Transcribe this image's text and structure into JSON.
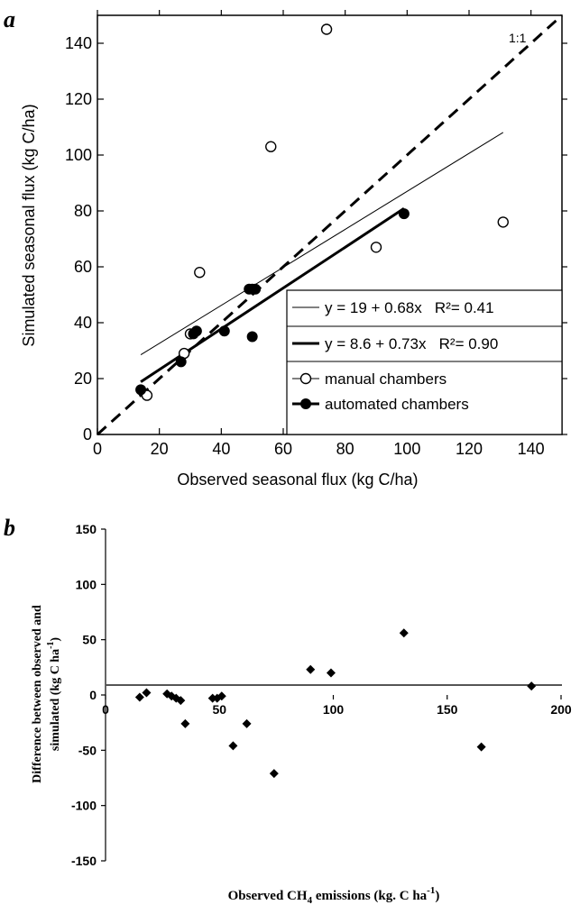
{
  "chart_data": [
    {
      "panel_label": "a",
      "type": "scatter",
      "xlabel": "Observed seasonal flux (kg C/ha)",
      "ylabel": "Simulated seasonal flux (kg C/ha)",
      "xlim": [
        0,
        150
      ],
      "ylim": [
        0,
        150
      ],
      "x_ticks": [
        "0",
        "20",
        "40",
        "60",
        "80",
        "100",
        "120",
        "140"
      ],
      "y_ticks": [
        "0",
        "20",
        "40",
        "60",
        "80",
        "100",
        "120",
        "140"
      ],
      "identity_line_label": "1:1",
      "series": [
        {
          "name": "manual chambers",
          "marker": "open-circle",
          "x": [
            16,
            28,
            30,
            33,
            56,
            74,
            90,
            131
          ],
          "y": [
            14,
            29,
            36,
            58,
            103,
            145,
            67,
            76
          ]
        },
        {
          "name": "automated chambers",
          "marker": "filled-circle",
          "x": [
            14,
            27,
            31,
            32,
            41,
            49,
            50,
            51,
            50,
            99
          ],
          "y": [
            16,
            26,
            36,
            37,
            37,
            52,
            52,
            52,
            35,
            79
          ]
        }
      ],
      "regressions": [
        {
          "label": "y = 19 + 0.68x   R²= 0.41",
          "intercept": 19,
          "slope": 0.68,
          "x_range": [
            14,
            131
          ],
          "style": "thin"
        },
        {
          "label": "y = 8.6 + 0.73x   R²= 0.90",
          "intercept": 8.6,
          "slope": 0.73,
          "x_range": [
            14,
            99
          ],
          "style": "thick"
        }
      ],
      "legend_placement": "bottom-right"
    },
    {
      "panel_label": "b",
      "type": "scatter",
      "xlabel_parts": {
        "pre": "Observed CH",
        "sub": "4",
        "mid": " emissions (kg. C ha",
        "sup": "-1",
        "post": ")"
      },
      "ylabel_line1": "Difference between observed and",
      "ylabel_line2_parts": {
        "pre": "simulated (kg C ha",
        "sup": "-1",
        "post": ")"
      },
      "xlim": [
        0,
        200
      ],
      "ylim": [
        -150,
        150
      ],
      "x_ticks": [
        "0",
        "50",
        "100",
        "150",
        "200"
      ],
      "y_ticks": [
        "150",
        "100",
        "50",
        "0",
        "-50",
        "-100",
        "-150"
      ],
      "series": [
        {
          "marker": "filled-diamond",
          "x": [
            15,
            18,
            27,
            29,
            31,
            33,
            35,
            47,
            49,
            51,
            56,
            62,
            74,
            90,
            99,
            131,
            165,
            187
          ],
          "y": [
            -2,
            2,
            1,
            -1,
            -3,
            -5,
            -26,
            -3,
            -3,
            -1,
            -46,
            -26,
            -71,
            23,
            20,
            56,
            -47,
            8
          ]
        }
      ]
    }
  ]
}
